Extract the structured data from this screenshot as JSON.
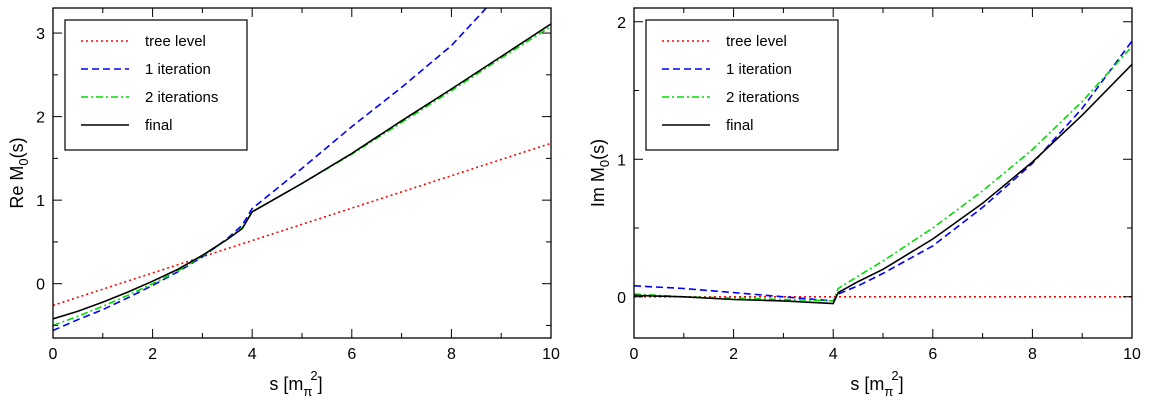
{
  "chart_data": [
    {
      "type": "line",
      "ylabel": {
        "main": "Re M",
        "sub": "0",
        "tail": "(s)"
      },
      "xlabel": {
        "main": "s [m",
        "sub": "π",
        "sup": "2",
        "tail": "]"
      },
      "xlim": [
        0,
        10
      ],
      "ylim": [
        -0.65,
        3.3
      ],
      "xticks": [
        "0",
        "2",
        "4",
        "6",
        "8",
        "10"
      ],
      "yticks": [
        "0",
        "1",
        "2",
        "3"
      ],
      "legend_position": "top-left",
      "series": [
        {
          "name": "tree level",
          "color": "#ff0000",
          "dash": "dotted",
          "x": [
            0,
            10
          ],
          "y": [
            -0.26,
            1.68
          ]
        },
        {
          "name": "1 iteration",
          "color": "#0000ff",
          "dash": "dashed",
          "x": [
            0,
            0.5,
            1,
            1.5,
            2,
            2.5,
            3,
            3.5,
            3.8,
            4,
            5,
            6,
            7,
            8,
            8.7
          ],
          "y": [
            -0.56,
            -0.43,
            -0.31,
            -0.17,
            -0.02,
            0.14,
            0.32,
            0.54,
            0.7,
            0.9,
            1.38,
            1.88,
            2.35,
            2.85,
            3.3
          ]
        },
        {
          "name": "2 iterations",
          "color": "#00dd00",
          "dash": "dashdot",
          "x": [
            0,
            0.5,
            1,
            1.5,
            2,
            2.5,
            3,
            3.5,
            3.8,
            4,
            5,
            6,
            7,
            8,
            9,
            10
          ],
          "y": [
            -0.5,
            -0.39,
            -0.27,
            -0.14,
            0.0,
            0.15,
            0.33,
            0.53,
            0.67,
            0.86,
            1.2,
            1.55,
            1.93,
            2.31,
            2.7,
            3.08
          ]
        },
        {
          "name": "final",
          "color": "#000000",
          "dash": "solid",
          "x": [
            0,
            0.5,
            1,
            1.5,
            2,
            2.5,
            3,
            3.5,
            3.8,
            4,
            5,
            6,
            7,
            8,
            9,
            10
          ],
          "y": [
            -0.42,
            -0.33,
            -0.22,
            -0.1,
            0.03,
            0.17,
            0.34,
            0.53,
            0.66,
            0.86,
            1.2,
            1.56,
            1.95,
            2.33,
            2.72,
            3.11
          ]
        }
      ]
    },
    {
      "type": "line",
      "ylabel": {
        "main": "Im M",
        "sub": "0",
        "tail": "(s)"
      },
      "xlabel": {
        "main": "s [m",
        "sub": "π",
        "sup": "2",
        "tail": "]"
      },
      "xlim": [
        0,
        10
      ],
      "ylim": [
        -0.3,
        2.1
      ],
      "xticks": [
        "0",
        "2",
        "4",
        "6",
        "8",
        "10"
      ],
      "yticks": [
        "0",
        "1",
        "2"
      ],
      "legend_position": "top-left",
      "series": [
        {
          "name": "tree level",
          "color": "#ff0000",
          "dash": "dotted",
          "x": [
            0,
            10
          ],
          "y": [
            0,
            0
          ]
        },
        {
          "name": "1 iteration",
          "color": "#0000ff",
          "dash": "dashed",
          "x": [
            0,
            1,
            2,
            3,
            4,
            4.1,
            4.5,
            5,
            6,
            7,
            8,
            9,
            10
          ],
          "y": [
            0.08,
            0.06,
            0.03,
            0.0,
            -0.03,
            0.02,
            0.08,
            0.17,
            0.37,
            0.65,
            0.97,
            1.37,
            1.86
          ]
        },
        {
          "name": "2 iterations",
          "color": "#00dd00",
          "dash": "dashdot",
          "x": [
            0,
            1,
            2,
            3,
            4,
            4.1,
            4.5,
            5,
            6,
            7,
            8,
            9,
            10
          ],
          "y": [
            0.02,
            0.0,
            -0.01,
            -0.02,
            -0.03,
            0.06,
            0.15,
            0.26,
            0.5,
            0.77,
            1.07,
            1.42,
            1.82
          ]
        },
        {
          "name": "final",
          "color": "#000000",
          "dash": "solid",
          "x": [
            0,
            1,
            2,
            3,
            4,
            4.1,
            4.5,
            5,
            6,
            7,
            8,
            9,
            10
          ],
          "y": [
            0.01,
            0.0,
            -0.02,
            -0.03,
            -0.05,
            0.03,
            0.11,
            0.2,
            0.42,
            0.68,
            0.98,
            1.32,
            1.69
          ]
        }
      ]
    }
  ]
}
